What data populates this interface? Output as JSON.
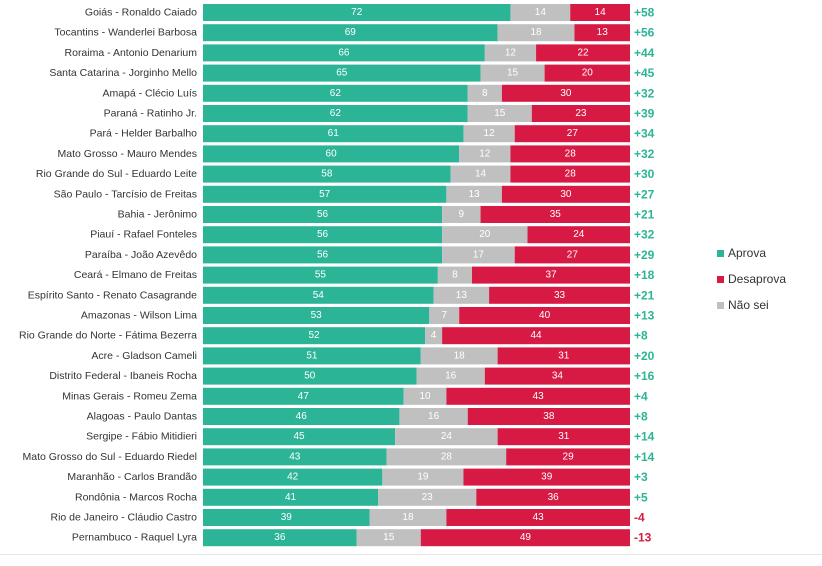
{
  "colors": {
    "aprova": "#2bb596",
    "desaprova": "#d71a44",
    "nao_sei": "#c0c0c0",
    "net_positive": "#2bb596",
    "net_negative": "#d71a44"
  },
  "legend": [
    {
      "name": "Aprova",
      "color_key": "aprova"
    },
    {
      "name": "Desaprova",
      "color_key": "desaprova"
    },
    {
      "name": "Não sei",
      "color_key": "nao_sei"
    }
  ],
  "chart_data": {
    "type": "bar",
    "orientation": "horizontal",
    "stacked": true,
    "legend_position": "right",
    "categories": [
      "Goiás - Ronaldo Caiado",
      "Tocantins - Wanderlei Barbosa",
      "Roraima - Antonio Denarium",
      "Santa Catarina - Jorginho Mello",
      "Amapá - Clécio Luís",
      "Paraná - Ratinho Jr.",
      "Pará - Helder Barbalho",
      "Mato Grosso - Mauro Mendes",
      "Rio Grande do Sul - Eduardo Leite",
      "São Paulo - Tarcísio de Freitas",
      "Bahia - Jerônimo",
      "Piauí - Rafael Fonteles",
      "Paraíba - João Azevêdo",
      "Ceará - Elmano de Freitas",
      "Espírito Santo - Renato Casagrande",
      "Amazonas - Wilson Lima",
      "Rio Grande do Norte - Fátima Bezerra",
      "Acre - Gladson Cameli",
      "Distrito Federal - Ibaneis Rocha",
      "Minas Gerais - Romeu Zema",
      "Alagoas - Paulo Dantas",
      "Sergipe - Fábio Mitidieri",
      "Mato Grosso do Sul - Eduardo Riedel",
      "Maranhão - Carlos Brandão",
      "Rondônia - Marcos Rocha",
      "Rio de Janeiro - Cláudio Castro",
      "Pernambuco - Raquel Lyra"
    ],
    "series": [
      {
        "name": "Aprova",
        "color_key": "aprova",
        "values": [
          72,
          69,
          66,
          65,
          62,
          62,
          61,
          60,
          58,
          57,
          56,
          56,
          56,
          55,
          54,
          53,
          52,
          51,
          50,
          47,
          46,
          45,
          43,
          42,
          41,
          39,
          36
        ]
      },
      {
        "name": "Não sei",
        "color_key": "nao_sei",
        "values": [
          14,
          18,
          12,
          15,
          8,
          15,
          12,
          12,
          14,
          13,
          9,
          20,
          17,
          8,
          13,
          7,
          4,
          18,
          16,
          10,
          16,
          24,
          28,
          19,
          23,
          18,
          15
        ]
      },
      {
        "name": "Desaprova",
        "color_key": "desaprova",
        "values": [
          14,
          13,
          22,
          20,
          30,
          23,
          27,
          28,
          28,
          30,
          35,
          24,
          27,
          37,
          33,
          40,
          44,
          31,
          34,
          43,
          38,
          31,
          29,
          39,
          36,
          43,
          49
        ]
      }
    ],
    "net_labels": [
      "+58",
      "+56",
      "+44",
      "+45",
      "+32",
      "+39",
      "+34",
      "+32",
      "+30",
      "+27",
      "+21",
      "+32",
      "+29",
      "+18",
      "+21",
      "+13",
      "+8",
      "+20",
      "+16",
      "+4",
      "+8",
      "+14",
      "+14",
      "+3",
      "+5",
      "-4",
      "-13"
    ],
    "xlim": [
      0,
      100
    ],
    "title": "",
    "xlabel": "",
    "ylabel": ""
  }
}
